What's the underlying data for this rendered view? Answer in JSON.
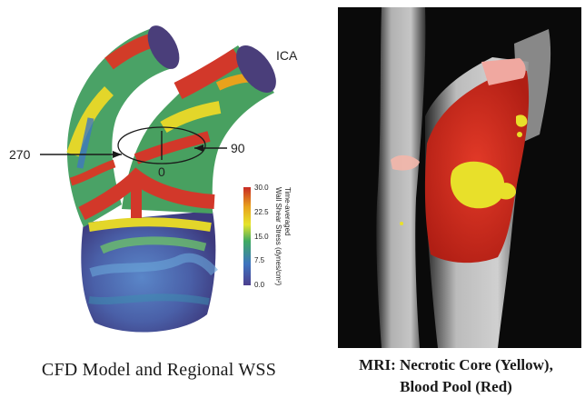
{
  "cfd_panel": {
    "artery_label": "ICA",
    "angle_left": "270",
    "angle_right": "90",
    "angle_bottom": "0",
    "colorbar": {
      "title_line1": "Time-averaged",
      "title_line2": "Wall Shear Stress (dynes/cm²)",
      "ticks": [
        "30.0",
        "22.5",
        "15.0",
        "7.5",
        "0.0"
      ],
      "colors": [
        "#d4382a",
        "#e8a21c",
        "#e6e42a",
        "#3faa62",
        "#3e74bf",
        "#4c3f8e"
      ]
    },
    "caption": "CFD Model and Regional WSS"
  },
  "mri_panel": {
    "caption_line1": "MRI: Necrotic Core (Yellow),",
    "caption_line2": "Blood Pool (Red)",
    "colors": {
      "core": "#e8e02a",
      "blood": "#d8261c",
      "tissue": "#cfcfcf"
    }
  }
}
